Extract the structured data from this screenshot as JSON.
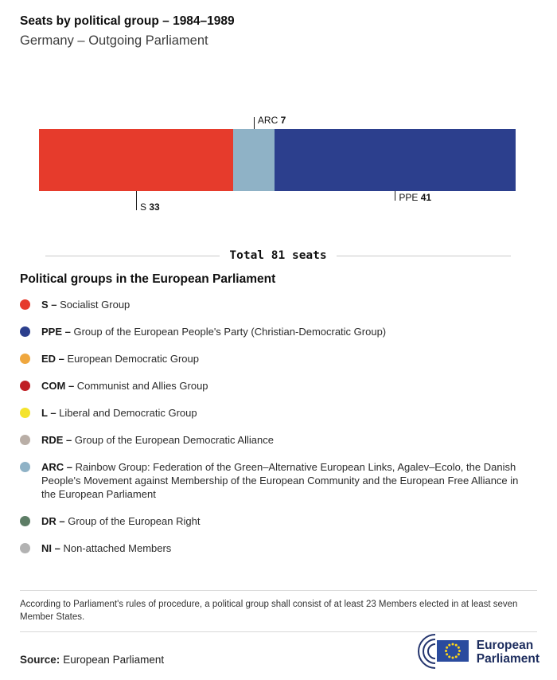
{
  "chart_data": {
    "type": "bar",
    "orientation": "horizontal",
    "stacked": true,
    "title": "Seats by political group – 1984–1989",
    "subtitle": "Germany – Outgoing Parliament",
    "total_seats": 81,
    "total_label": "Total 81 seats",
    "series": [
      {
        "name": "S",
        "value": 33,
        "color": "#e63b2c",
        "callout": "below-long"
      },
      {
        "name": "ARC",
        "value": 7,
        "color": "#8fb2c6",
        "callout": "above"
      },
      {
        "name": "PPE",
        "value": 41,
        "color": "#2c3f8d",
        "callout": "below"
      }
    ]
  },
  "legend": {
    "heading": "Political groups in the European Parliament",
    "items": [
      {
        "abbr": "S –",
        "label": "Socialist Group",
        "color": "#e63b2c"
      },
      {
        "abbr": "PPE –",
        "label": "Group of the European People's Party (Christian-Democratic Group)",
        "color": "#2c3f8d"
      },
      {
        "abbr": "ED –",
        "label": "European Democratic Group",
        "color": "#efa73e"
      },
      {
        "abbr": "COM –",
        "label": "Communist and Allies Group",
        "color": "#bf1f24"
      },
      {
        "abbr": "L –",
        "label": "Liberal and Democratic Group",
        "color": "#f4e32c"
      },
      {
        "abbr": "RDE –",
        "label": "Group of the European Democratic Alliance",
        "color": "#b9aea6"
      },
      {
        "abbr": "ARC –",
        "label": "Rainbow Group: Federation of the Green–Alternative European Links, Agalev–Ecolo, the Danish People's Movement against Membership of the European Community and the European Free Alliance in the European Parliament",
        "color": "#8fb2c6"
      },
      {
        "abbr": "DR –",
        "label": "Group of the European Right",
        "color": "#5d7d66"
      },
      {
        "abbr": "NI –",
        "label": "Non-attached Members",
        "color": "#b2b2b2"
      }
    ]
  },
  "footnote": "According to Parliament's rules of procedure, a political group shall consist of at least 23 Members elected in at least seven Member States.",
  "source": {
    "label": "Source:",
    "value": "European Parliament"
  },
  "logo": {
    "line1": "European",
    "line2": "Parliament"
  }
}
